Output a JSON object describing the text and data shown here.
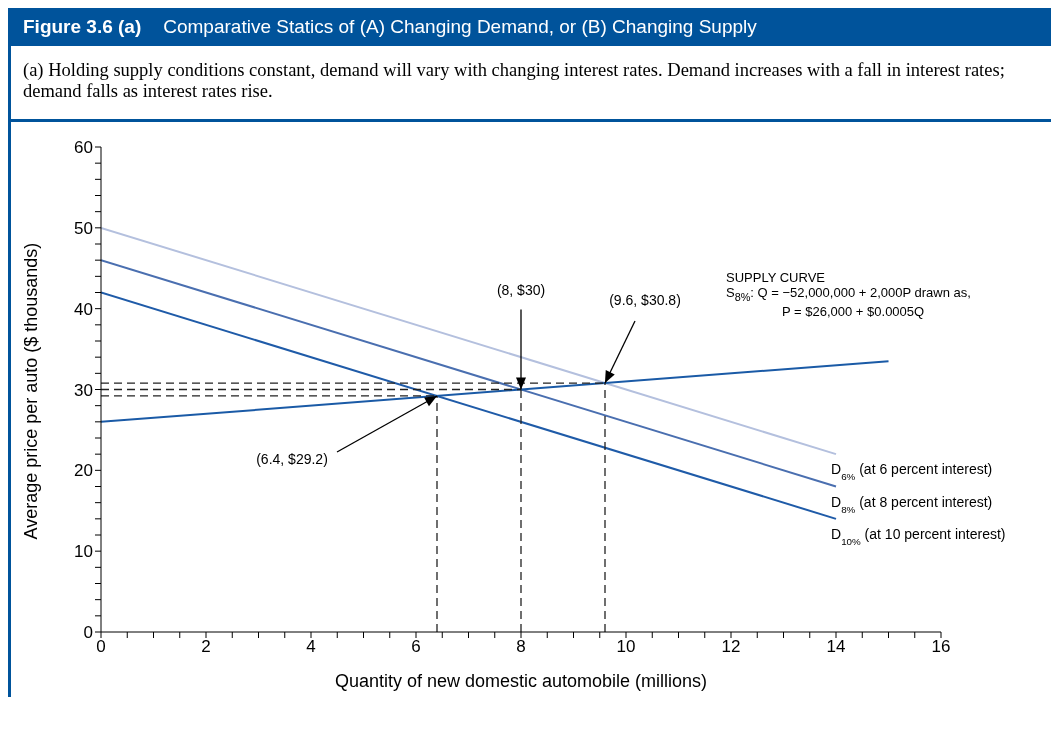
{
  "chart_data": {
    "type": "line",
    "title": "Figure 3.6 (a)",
    "subtitle": "Comparative Statics of (A) Changing Demand, or (B) Changing Supply",
    "xlabel": "Quantity of new domestic automobile (millions)",
    "ylabel": "Average price per auto ($ thousands)",
    "xlim": [
      0,
      16
    ],
    "ylim": [
      0,
      60
    ],
    "xticks": [
      0,
      {
        "value": 0.5,
        "label": null
      },
      {
        "value": 1,
        "label": null
      },
      {
        "value": 1.5,
        "label": null
      },
      2,
      {
        "value": 2.5,
        "label": null
      },
      {
        "value": 3,
        "label": null
      },
      {
        "value": 3.5,
        "label": null
      },
      4,
      {
        "value": 4.5,
        "label": null
      },
      {
        "value": 5,
        "label": null
      },
      {
        "value": 5.5,
        "label": null
      },
      6,
      {
        "value": 6.5,
        "label": null
      },
      {
        "value": 7,
        "label": null
      },
      {
        "value": 7.5,
        "label": null
      },
      8,
      {
        "value": 8.5,
        "label": null
      },
      {
        "value": 9,
        "label": null
      },
      {
        "value": 9.5,
        "label": null
      },
      10,
      {
        "value": 10.5,
        "label": null
      },
      {
        "value": 11,
        "label": null
      },
      {
        "value": 11.5,
        "label": null
      },
      12,
      {
        "value": 12.5,
        "label": null
      },
      {
        "value": 13,
        "label": null
      },
      {
        "value": 13.5,
        "label": null
      },
      14,
      {
        "value": 14.5,
        "label": null
      },
      {
        "value": 15,
        "label": null
      },
      {
        "value": 15.5,
        "label": null
      },
      16
    ],
    "yticks": [
      0,
      {
        "value": 2,
        "label": null
      },
      {
        "value": 4,
        "label": null
      },
      {
        "value": 6,
        "label": null
      },
      {
        "value": 8,
        "label": null
      },
      10,
      {
        "value": 12,
        "label": null
      },
      {
        "value": 14,
        "label": null
      },
      {
        "value": 16,
        "label": null
      },
      {
        "value": 18,
        "label": null
      },
      20,
      {
        "value": 22,
        "label": null
      },
      {
        "value": 24,
        "label": null
      },
      {
        "value": 26,
        "label": null
      },
      {
        "value": 28,
        "label": null
      },
      30,
      {
        "value": 32,
        "label": null
      },
      {
        "value": 34,
        "label": null
      },
      {
        "value": 36,
        "label": null
      },
      {
        "value": 38,
        "label": null
      },
      40,
      {
        "value": 42,
        "label": null
      },
      {
        "value": 44,
        "label": null
      },
      {
        "value": 46,
        "label": null
      },
      {
        "value": 48,
        "label": null
      },
      50,
      {
        "value": 52,
        "label": null
      },
      {
        "value": 54,
        "label": null
      },
      {
        "value": 56,
        "label": null
      },
      {
        "value": 58,
        "label": null
      },
      60
    ],
    "grid": false,
    "legend": false,
    "marker": "none",
    "annotations": [
      "(a) Holding supply conditions constant, demand will vary with changing interest rates. Demand increases with a fall in interest rates; demand falls as interest rates rise.",
      "SUPPLY CURVE",
      "S$_{8%}$: Q = −52,000,000 + 2,000P drawn as,",
      "P = $26,000 + $0.0005Q",
      {
        "text": "(8, $30)",
        "x": 8,
        "y": 30
      },
      {
        "text": "(9.6, $30.8)",
        "x": 9.6,
        "y": 30.8
      },
      {
        "text": "(6.4, $29.2)",
        "x": 6.4,
        "y": 29.2
      }
    ],
    "series": [
      {
        "name": "D$_{6%}$ (at 6 percent interest)",
        "color": "#b4c0de",
        "x": [
          0,
          14
        ],
        "values": [
          50,
          22
        ]
      },
      {
        "name": "D$_{8%}$ (at 8 percent interest)",
        "color": "#4a6fb0",
        "x": [
          0,
          14
        ],
        "values": [
          46,
          18
        ]
      },
      {
        "name": "D$_{10%}$ (at 10 percent interest)",
        "color": "#1f5ba8",
        "x": [
          0,
          14
        ],
        "values": [
          42,
          14
        ]
      },
      {
        "color": "#1a5aa6",
        "x": [
          0,
          15
        ],
        "values": [
          26,
          33.5
        ]
      },
      {
        "color": "#222222",
        "line_style": "dashed",
        "x": [
          0,
          9.6
        ],
        "values": [
          30.8,
          30.8
        ]
      },
      {
        "color": "#222222",
        "line_style": "dashed",
        "x": [
          0,
          8
        ],
        "values": [
          30,
          30
        ]
      },
      {
        "color": "#222222",
        "line_style": "dashed",
        "x": [
          0,
          6.4
        ],
        "values": [
          29.2,
          29.2
        ]
      },
      {
        "color": "#222222",
        "line_style": "dashed",
        "x": [
          6.4,
          6.4
        ],
        "values": [
          0,
          29.2
        ]
      },
      {
        "color": "#222222",
        "line_style": "dashed",
        "x": [
          8,
          8
        ],
        "values": [
          0,
          30
        ]
      },
      {
        "color": "#222222",
        "line_style": "dashed",
        "x": [
          9.6,
          9.6
        ],
        "values": [
          0,
          30.8
        ]
      }
    ]
  }
}
